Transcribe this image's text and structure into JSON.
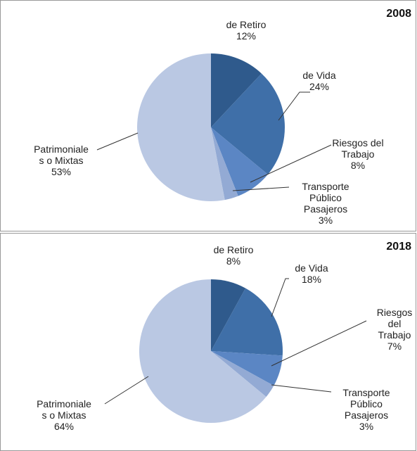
{
  "chart_data": [
    {
      "type": "pie",
      "title": "2008",
      "categories": [
        "de Retiro",
        "de Vida",
        "Riesgos del\nTrabajo",
        "Transporte\nPúblico\nPasajeros",
        "Patrimoniale\ns o Mixtas"
      ],
      "values": [
        12,
        24,
        8,
        3,
        53
      ],
      "value_labels": [
        "12%",
        "24%",
        "8%",
        "3%",
        "53%"
      ],
      "colors": [
        "#2f5a8c",
        "#3f6fa8",
        "#5b86c4",
        "#93aad4",
        "#bac8e3"
      ]
    },
    {
      "type": "pie",
      "title": "2018",
      "categories": [
        "de Retiro",
        "de Vida",
        "Riesgos del\nTrabajo",
        "Transporte\nPúblico\nPasajeros",
        "Patrimoniale\ns o Mixtas"
      ],
      "values": [
        8,
        18,
        7,
        3,
        64
      ],
      "value_labels": [
        "8%",
        "18%",
        "7%",
        "3%",
        "64%"
      ],
      "colors": [
        "#2f5a8c",
        "#3f6fa8",
        "#5b86c4",
        "#93aad4",
        "#bac8e3"
      ]
    }
  ]
}
